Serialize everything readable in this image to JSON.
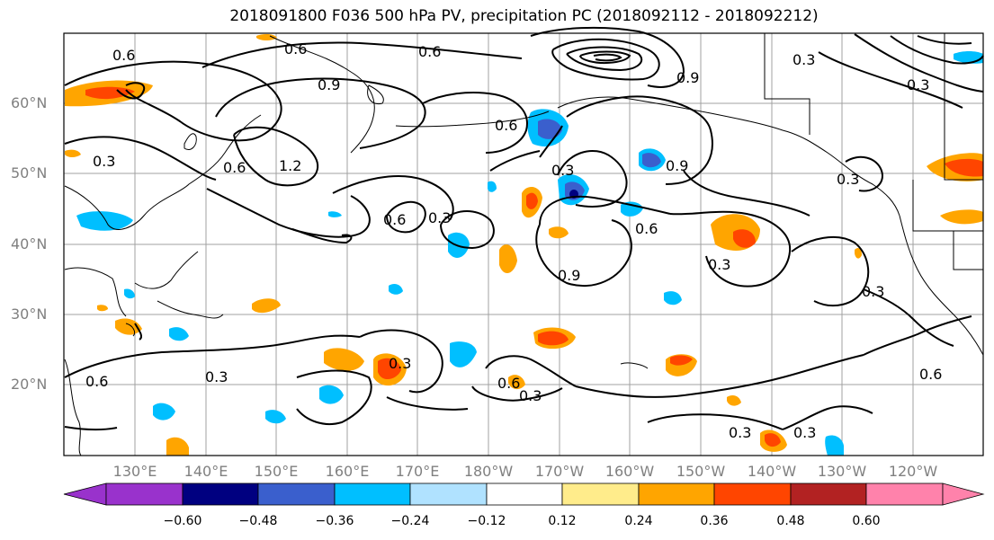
{
  "title": "2018091800 F036 500 hPa PV, precipitation PC (2018092112 - 2018092212)",
  "lat_labels": [
    "60°N",
    "50°N",
    "40°N",
    "30°N",
    "20°N"
  ],
  "lon_labels": [
    "130°E",
    "140°E",
    "150°E",
    "160°E",
    "170°E",
    "180°W",
    "170°W",
    "160°W",
    "150°W",
    "140°W",
    "130°W",
    "120°W"
  ],
  "contour_labels": [
    "0.6",
    "0.6",
    "0.6",
    "0.9",
    "1.2",
    "0.6",
    "0.3",
    "0.9",
    "0.6",
    "0.6",
    "0.3",
    "0.9",
    "0.9",
    "0.6",
    "0.3",
    "0.3",
    "0.3",
    "0.3",
    "0.6",
    "0.6",
    "0.3",
    "0.3",
    "0.3",
    "0.3",
    "0.6",
    "0.3",
    "0.3",
    "0.3"
  ],
  "colorbar": {
    "ticks": [
      "−0.60",
      "−0.48",
      "−0.36",
      "−0.24",
      "−0.12",
      "0.12",
      "0.24",
      "0.36",
      "0.48",
      "0.60"
    ],
    "colors": [
      "#9932CC",
      "#000080",
      "#3A5FCD",
      "#00BFFF",
      "#B0E2FF",
      "#FFFFFF",
      "#FFEC8B",
      "#FFA500",
      "#FF4500",
      "#B22222",
      "#FF82AB"
    ]
  },
  "colors": {
    "map_frame": "#000000",
    "grid": "#a0a0a0",
    "label_gray": "#808080"
  }
}
